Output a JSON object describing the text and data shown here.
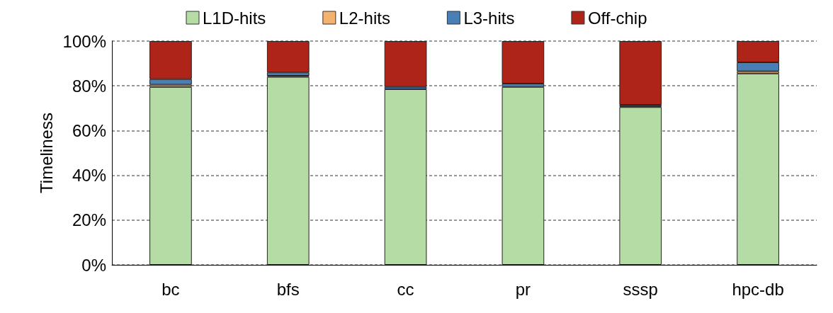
{
  "chart_data": {
    "type": "bar",
    "stacked": true,
    "ylabel": "Timeliness",
    "categories": [
      "bc",
      "bfs",
      "cc",
      "pr",
      "sssp",
      "hpc-db"
    ],
    "series": [
      {
        "name": "L1D-hits",
        "color": "#b5dca5",
        "values": [
          79.5,
          84,
          78.5,
          79.5,
          70.5,
          85.5
        ]
      },
      {
        "name": "L2-hits",
        "color": "#f4b26f",
        "values": [
          1,
          0.5,
          null,
          null,
          0.3,
          1
        ]
      },
      {
        "name": "L3-hits",
        "color": "#4a7fb5",
        "values": [
          2.5,
          1.5,
          1,
          1.5,
          0.7,
          4
        ]
      },
      {
        "name": "Off-chip",
        "color": "#ae2418",
        "values": [
          17,
          14,
          20.5,
          19,
          28.5,
          9.5
        ]
      }
    ],
    "ylim": [
      0,
      100
    ],
    "yticks": [
      {
        "value": 0,
        "label": "0%"
      },
      {
        "value": 20,
        "label": "20%"
      },
      {
        "value": 40,
        "label": "40%"
      },
      {
        "value": 60,
        "label": "60%"
      },
      {
        "value": 80,
        "label": "80%"
      },
      {
        "value": 100,
        "label": "100%"
      }
    ],
    "grid": "y",
    "legend": "top"
  }
}
